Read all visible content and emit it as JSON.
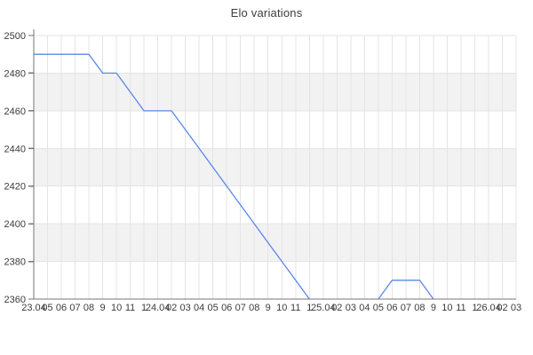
{
  "title": "Elo variations",
  "chart_data": {
    "type": "line",
    "title": "Elo variations",
    "xlabel": "",
    "ylabel": "",
    "x_labels": [
      "23.04",
      "05",
      "06",
      "07",
      "08",
      "9",
      "10",
      "11",
      "1",
      "24.04",
      "02",
      "03",
      "04",
      "05",
      "06",
      "07",
      "08",
      "9",
      "10",
      "11",
      "1",
      "25.04",
      "02",
      "03",
      "04",
      "05",
      "06",
      "07",
      "08",
      "9",
      "10",
      "11",
      "1",
      "26.04",
      "02",
      "03"
    ],
    "series": [
      {
        "name": "Elo",
        "values": [
          2490,
          2490,
          2490,
          2490,
          2490,
          2480,
          2480,
          2470,
          2460,
          2460,
          2460,
          2450,
          2440,
          2430,
          2420,
          2410,
          2400,
          2390,
          2380,
          2370,
          2360,
          null,
          null,
          null,
          null,
          2360,
          2370,
          2370,
          2370,
          2360,
          null,
          null,
          null,
          null,
          null,
          null
        ]
      }
    ],
    "ylim": [
      2360,
      2500
    ],
    "ytick_step": 20,
    "y_tick_labels": [
      "2360",
      "2380",
      "2400",
      "2420",
      "2440",
      "2460",
      "2480",
      "2500"
    ],
    "grid": true,
    "legend_position": "none",
    "alternating_bands": true,
    "colors": {
      "line": "#5b87e8",
      "band": "#f2f2f2",
      "gridline": "#e4e4e4",
      "axis": "#757575",
      "label": "#3c3c3c",
      "title": "#3c3c3c",
      "background": "#ffffff"
    }
  }
}
